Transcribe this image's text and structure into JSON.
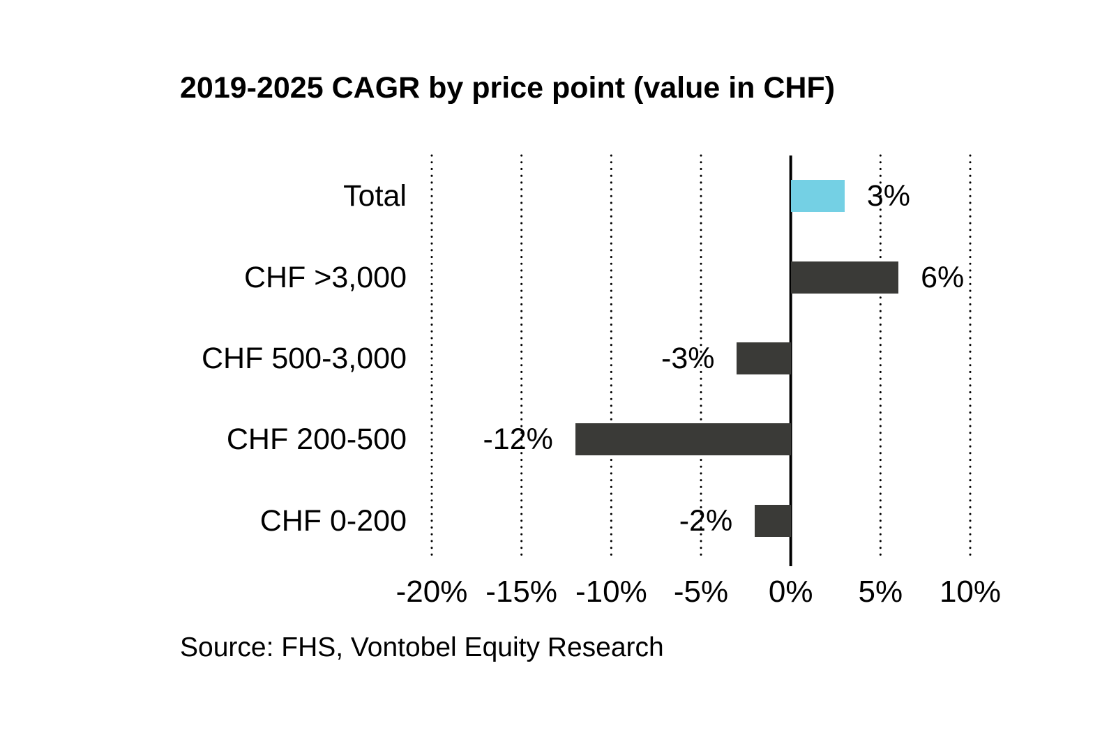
{
  "page": {
    "title": "2019-2025 CAGR by price point (value in CHF)",
    "source_note": "Source: FHS, Vontobel Equity Research"
  },
  "colors": {
    "highlight_bar": "#74D0E4",
    "default_bar": "#3A3A37",
    "text": "#000000",
    "background": "#FFFFFF",
    "gridline": "#000000"
  },
  "chart_data": {
    "type": "bar",
    "orientation": "horizontal",
    "title": "2019-2025 CAGR by price point (value in CHF)",
    "categories": [
      "Total",
      "CHF >3,000",
      "CHF 500-3,000",
      "CHF 200-500",
      "CHF 0-200"
    ],
    "values": [
      3,
      6,
      -3,
      -12,
      -2
    ],
    "value_labels": [
      "3%",
      "6%",
      "-3%",
      "-12%",
      "-2%"
    ],
    "bar_color_roles": [
      "highlight_bar",
      "default_bar",
      "default_bar",
      "default_bar",
      "default_bar"
    ],
    "xlabel": "",
    "ylabel": "",
    "xlim": [
      -20,
      10
    ],
    "xticks": [
      -20,
      -15,
      -10,
      -5,
      0,
      5,
      10
    ],
    "xtick_labels": [
      "-20%",
      "-15%",
      "-10%",
      "-5%",
      "0%",
      "5%",
      "10%"
    ],
    "grid": "vertical-dotted",
    "zero_axis": "solid",
    "legend": "none",
    "source": "Source: FHS, Vontobel Equity Research"
  }
}
